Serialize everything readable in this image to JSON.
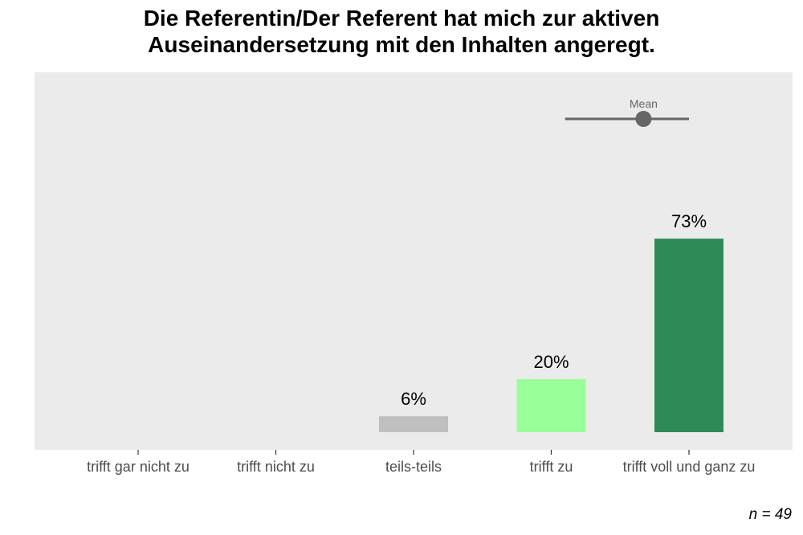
{
  "chart_data": {
    "type": "bar",
    "title_lines": [
      "Die Referentin/Der Referent hat mich zur aktiven",
      "Auseinandersetzung mit den Inhalten angeregt."
    ],
    "categories": [
      "trifft gar nicht zu",
      "trifft nicht zu",
      "teils-teils",
      "trifft zu",
      "trifft voll und ganz zu"
    ],
    "values": [
      0,
      0,
      6,
      20,
      73
    ],
    "value_labels": [
      "",
      "",
      "6%",
      "20%",
      "73%"
    ],
    "colors": [
      "#c0c0c0",
      "#c0c0c0",
      "#bfbfbf",
      "#99ff99",
      "#2e8b57"
    ],
    "panel_background": "#ebebeb",
    "ylim": [
      0,
      100
    ],
    "mean": {
      "label": "Mean",
      "value": 4.67,
      "range_low": 4.1,
      "range_high": 5.0,
      "color": "#666666"
    },
    "footnote": "n = 49"
  }
}
